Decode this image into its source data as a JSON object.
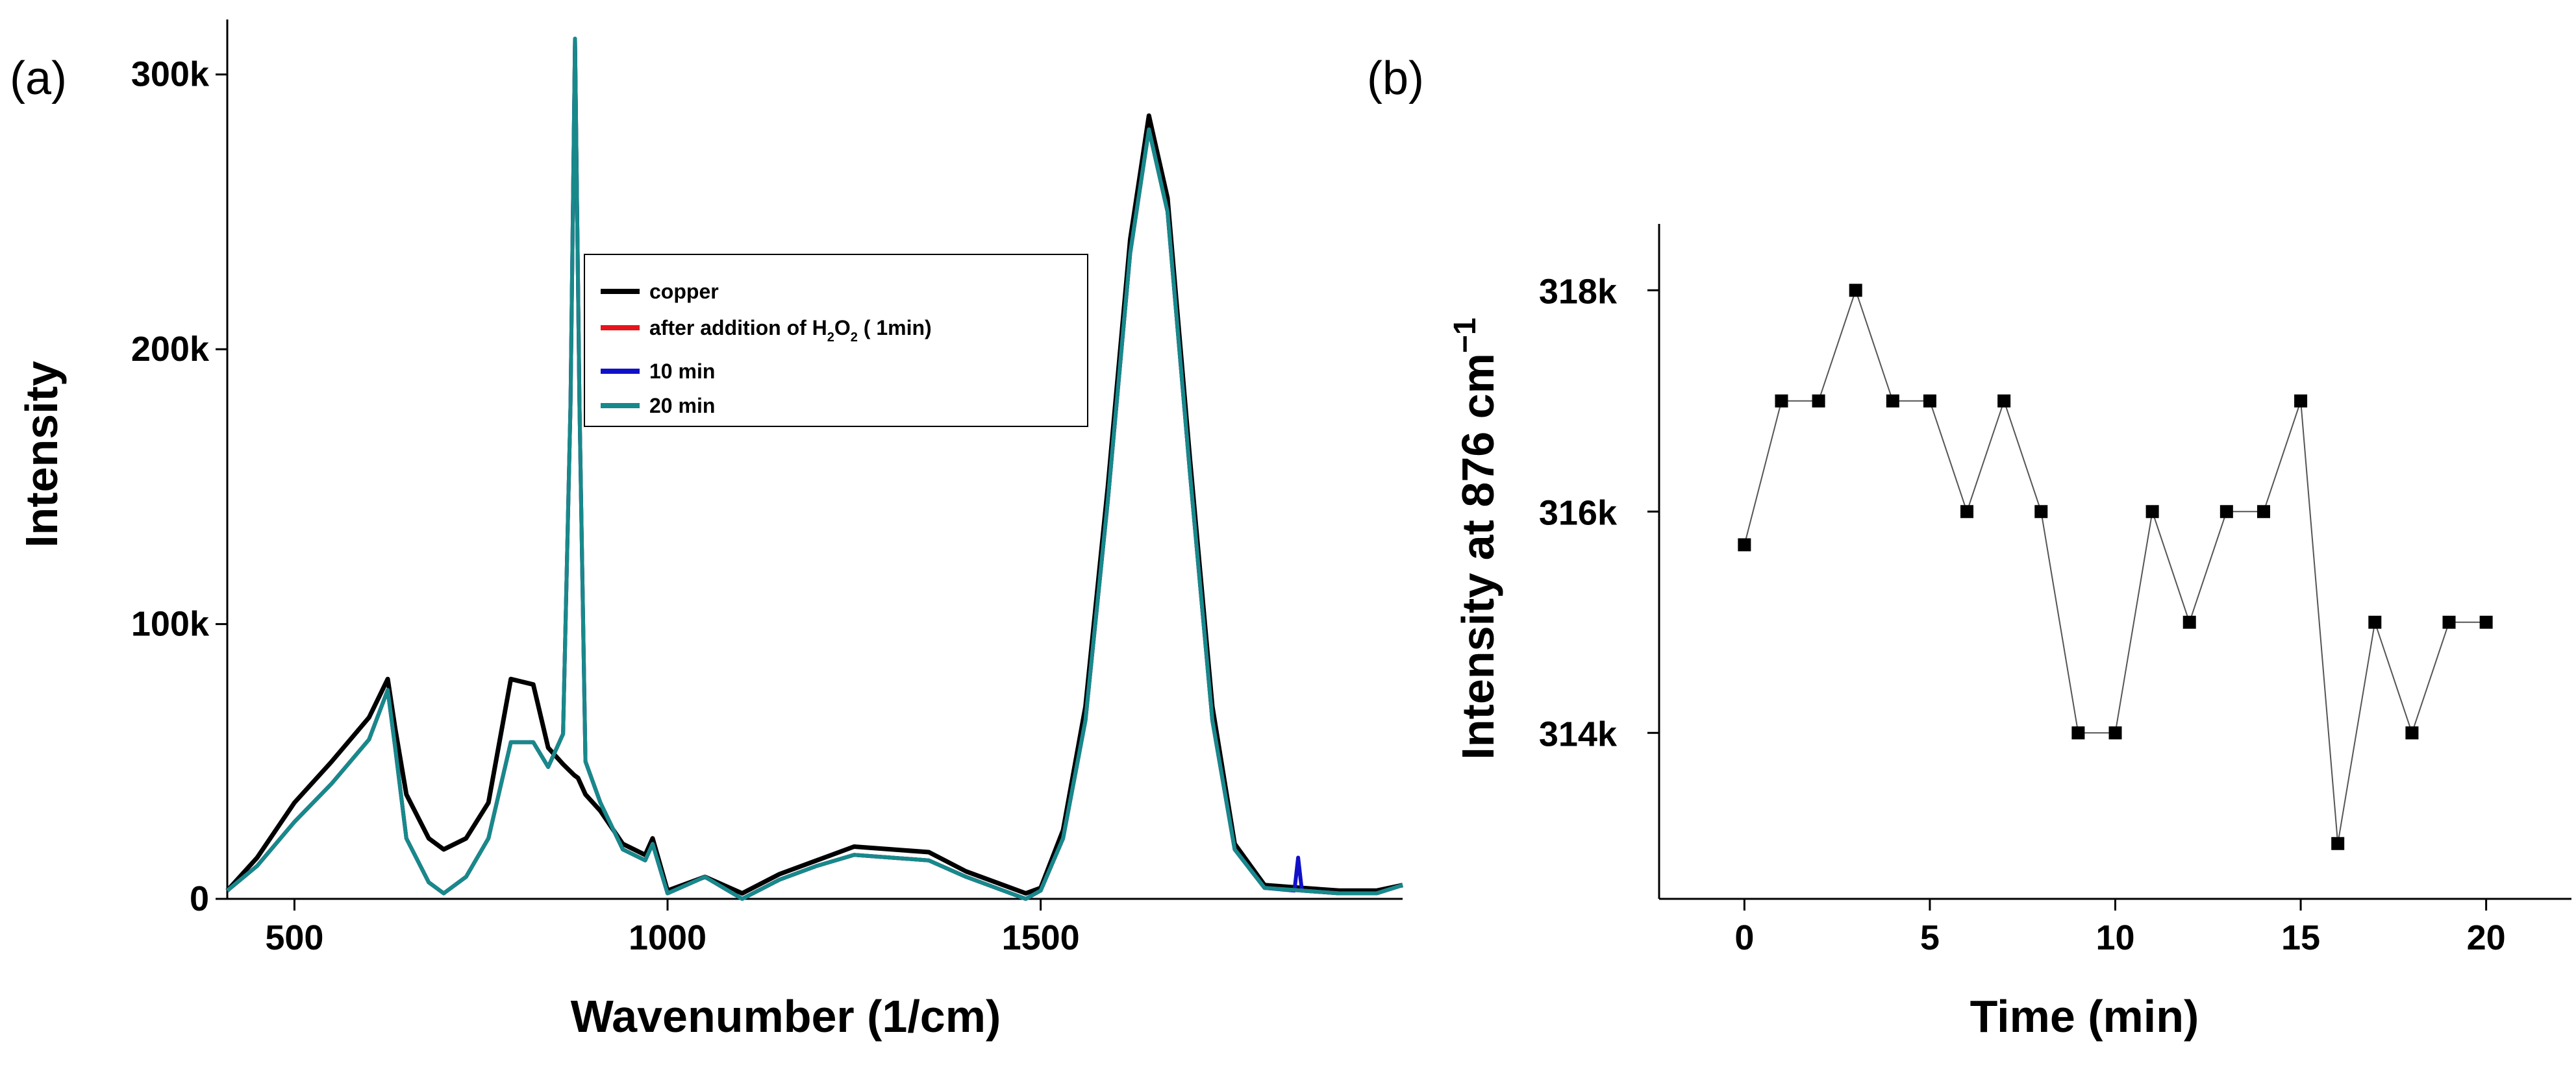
{
  "chart_data": [
    {
      "panel": "(a)",
      "type": "line",
      "xlabel": "Wavenumber (1/cm)",
      "ylabel": "Intensity",
      "xlim": [
        410,
        1985
      ],
      "ylim": [
        0,
        320000
      ],
      "x_ticks": [
        500,
        1000,
        1500
      ],
      "x_tick_labels": [
        "500",
        "1000",
        "1500"
      ],
      "y_ticks": [
        0,
        100000,
        200000,
        300000
      ],
      "y_tick_labels": [
        "0",
        "100k",
        "200k",
        "300k"
      ],
      "legend": {
        "placement": "center",
        "entries": [
          {
            "label": "copper",
            "color": "#000000"
          },
          {
            "label_parts": [
              "after addition of H",
              "2",
              "O",
              "2",
              " ( 1min)"
            ],
            "color": "#e8141c"
          },
          {
            "label": "10 min",
            "color": "#1010c8"
          },
          {
            "label": "20 min",
            "color": "#17898a"
          }
        ]
      },
      "series": [
        {
          "name": "copper",
          "color": "#000000",
          "x": [
            410,
            450,
            500,
            550,
            600,
            625,
            635,
            650,
            680,
            700,
            730,
            760,
            790,
            820,
            840,
            860,
            875,
            880,
            890,
            910,
            940,
            970,
            980,
            1000,
            1050,
            1100,
            1150,
            1200,
            1250,
            1300,
            1350,
            1400,
            1450,
            1480,
            1500,
            1530,
            1560,
            1590,
            1620,
            1645,
            1670,
            1700,
            1730,
            1760,
            1800,
            1850,
            1900,
            1950,
            1985
          ],
          "y": [
            3000,
            15000,
            35000,
            50000,
            66000,
            80000,
            62000,
            38000,
            22000,
            18000,
            22000,
            35000,
            80000,
            78000,
            55000,
            49000,
            45000,
            44000,
            38000,
            32000,
            20000,
            16000,
            22000,
            3000,
            8000,
            2000,
            9000,
            14000,
            19000,
            18000,
            17000,
            10000,
            5000,
            2000,
            4000,
            25000,
            70000,
            150000,
            240000,
            285000,
            255000,
            160000,
            70000,
            20000,
            5000,
            4000,
            3000,
            3000,
            5000
          ]
        },
        {
          "name": "after addition of H2O2 ( 1min)",
          "color": "#e8141c",
          "x": [
            410,
            450,
            500,
            550,
            600,
            625,
            635,
            650,
            680,
            700,
            730,
            760,
            790,
            820,
            840,
            860,
            870,
            876,
            882,
            890,
            910,
            940,
            970,
            980,
            1000,
            1050,
            1100,
            1150,
            1200,
            1250,
            1300,
            1350,
            1400,
            1450,
            1480,
            1500,
            1530,
            1560,
            1590,
            1620,
            1645,
            1670,
            1700,
            1730,
            1760,
            1800,
            1850,
            1900,
            1950,
            1985
          ],
          "y": [
            3000,
            12000,
            28000,
            42000,
            58000,
            76000,
            55000,
            22000,
            6000,
            2000,
            8000,
            22000,
            57000,
            57000,
            48000,
            60000,
            180000,
            313000,
            180000,
            50000,
            35000,
            18000,
            14000,
            20000,
            2000,
            8000,
            0,
            7000,
            12000,
            16000,
            15000,
            14000,
            8000,
            3000,
            0,
            3000,
            22000,
            65000,
            145000,
            235000,
            280000,
            250000,
            155000,
            65000,
            18000,
            4000,
            3000,
            2000,
            2000,
            5000
          ]
        },
        {
          "name": "10 min",
          "color": "#1010c8",
          "x": [
            410,
            450,
            500,
            550,
            600,
            625,
            635,
            650,
            680,
            700,
            730,
            760,
            790,
            820,
            840,
            860,
            870,
            876,
            882,
            890,
            910,
            940,
            970,
            980,
            1000,
            1050,
            1100,
            1150,
            1200,
            1250,
            1300,
            1350,
            1400,
            1450,
            1480,
            1500,
            1530,
            1560,
            1590,
            1620,
            1645,
            1670,
            1700,
            1730,
            1760,
            1800,
            1840,
            1845,
            1850,
            1900,
            1950,
            1985
          ],
          "y": [
            3000,
            12000,
            28000,
            42000,
            58000,
            76000,
            55000,
            22000,
            6000,
            2000,
            8000,
            22000,
            57000,
            57000,
            48000,
            60000,
            180000,
            313000,
            180000,
            50000,
            35000,
            18000,
            14000,
            20000,
            2000,
            8000,
            0,
            7000,
            12000,
            16000,
            15000,
            14000,
            8000,
            3000,
            0,
            3000,
            22000,
            65000,
            145000,
            235000,
            280000,
            250000,
            155000,
            65000,
            18000,
            4000,
            3000,
            15000,
            3000,
            2000,
            2000,
            5000
          ]
        },
        {
          "name": "20 min",
          "color": "#17898a",
          "x": [
            410,
            450,
            500,
            550,
            600,
            625,
            635,
            650,
            680,
            700,
            730,
            760,
            790,
            820,
            840,
            860,
            870,
            876,
            882,
            890,
            910,
            940,
            970,
            980,
            1000,
            1050,
            1100,
            1150,
            1200,
            1250,
            1300,
            1350,
            1400,
            1450,
            1480,
            1500,
            1530,
            1560,
            1590,
            1620,
            1645,
            1670,
            1700,
            1730,
            1760,
            1800,
            1850,
            1900,
            1950,
            1985
          ],
          "y": [
            3000,
            12000,
            28000,
            42000,
            58000,
            76000,
            55000,
            22000,
            6000,
            2000,
            8000,
            22000,
            57000,
            57000,
            48000,
            60000,
            180000,
            313000,
            180000,
            50000,
            35000,
            18000,
            14000,
            20000,
            2000,
            8000,
            0,
            7000,
            12000,
            16000,
            15000,
            14000,
            8000,
            3000,
            0,
            3000,
            22000,
            65000,
            145000,
            235000,
            280000,
            250000,
            155000,
            65000,
            18000,
            4000,
            3000,
            2000,
            2000,
            5000
          ]
        }
      ]
    },
    {
      "panel": "(b)",
      "type": "line",
      "xlabel": "Time (min)",
      "ylabel_main": "Intensity at 876 cm",
      "ylabel_sup": "−1",
      "xlim": [
        -2.3,
        22.3
      ],
      "ylim": [
        312500,
        318600
      ],
      "x_ticks": [
        0,
        5,
        10,
        15,
        20
      ],
      "x_tick_labels": [
        "0",
        "5",
        "10",
        "15",
        "20"
      ],
      "y_ticks": [
        314000,
        316000,
        318000
      ],
      "y_tick_labels": [
        "314k",
        "316k",
        "318k"
      ],
      "marker": "square",
      "series": [
        {
          "name": "Intensity at 876 cm-1",
          "color": "#000000",
          "x": [
            0,
            1,
            2,
            3,
            4,
            5,
            6,
            7,
            8,
            9,
            10,
            11,
            12,
            13,
            14,
            15,
            16,
            17,
            18,
            19,
            20
          ],
          "y": [
            315700,
            317000,
            317000,
            318000,
            317000,
            317000,
            316000,
            317000,
            316000,
            314000,
            314000,
            316000,
            315000,
            316000,
            316000,
            317000,
            313000,
            315000,
            314000,
            315000,
            315000
          ]
        }
      ]
    }
  ]
}
